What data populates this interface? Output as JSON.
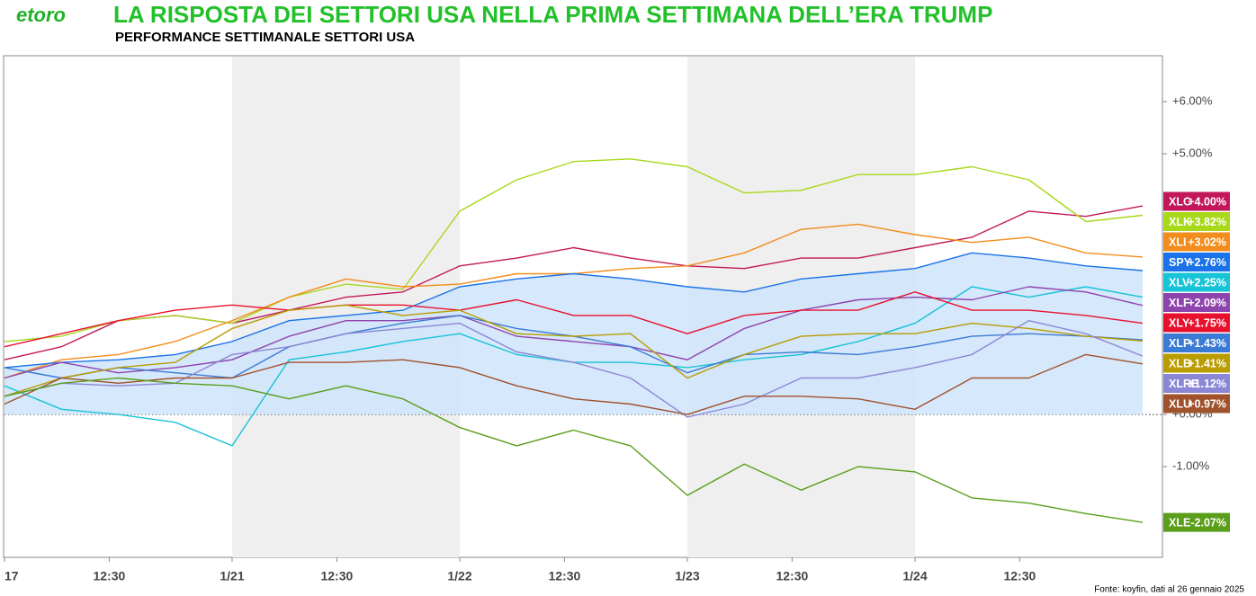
{
  "logo": "etoro",
  "chart_data": {
    "type": "line",
    "title": "LA RISPOSTA DEI SETTORI USA NELLA PRIMA SETTIMANA DELL’ERA TRUMP",
    "subtitle": "PERFORMANCE SETTIMANALE SETTORI USA",
    "source": "Fonte: koyfin, dati al 26 gennaio 2025",
    "x": [
      0,
      0.25,
      0.5,
      0.75,
      1,
      1.25,
      1.5,
      1.75,
      2,
      2.25,
      2.5,
      2.75,
      3,
      3.25,
      3.5,
      3.75,
      4,
      4.25,
      4.5,
      4.75,
      5
    ],
    "xlim": [
      0,
      5
    ],
    "xticks": [
      {
        "value": 0,
        "label": "17"
      },
      {
        "value": 0.46,
        "label": "12:30"
      },
      {
        "value": 1,
        "label": "1/21"
      },
      {
        "value": 1.46,
        "label": "12:30"
      },
      {
        "value": 2,
        "label": "1/22"
      },
      {
        "value": 2.46,
        "label": "12:30"
      },
      {
        "value": 3,
        "label": "1/23"
      },
      {
        "value": 3.46,
        "label": "12:30"
      },
      {
        "value": 4,
        "label": "1/24"
      },
      {
        "value": 4.46,
        "label": "12:30"
      }
    ],
    "ylim": [
      -2.74,
      6.88
    ],
    "yticks": [
      {
        "value": -1,
        "label": "-1.00%"
      },
      {
        "value": 0,
        "label": "+0.00%"
      },
      {
        "value": 5,
        "label": "+5.00%"
      },
      {
        "value": 6,
        "label": "+6.00%"
      }
    ],
    "shaded_days": [
      1,
      3
    ],
    "series": [
      {
        "name": "XLC",
        "color": "#c2185b",
        "values": [
          1.05,
          1.3,
          1.8,
          1.9,
          1.75,
          2.0,
          2.25,
          2.35,
          2.85,
          3.0,
          3.2,
          3.0,
          2.85,
          2.8,
          3.0,
          3.0,
          3.2,
          3.4,
          3.9,
          3.8,
          4.0
        ],
        "value_labels": [
          null,
          null,
          null,
          null,
          null,
          null,
          null,
          null,
          null,
          null,
          null,
          null,
          null,
          null,
          null,
          null,
          null,
          null,
          null,
          null,
          "+4.00%"
        ]
      },
      {
        "name": "XLK",
        "color": "#a8d81a",
        "values": [
          1.4,
          1.5,
          1.8,
          1.9,
          1.75,
          2.25,
          2.5,
          2.4,
          3.9,
          4.5,
          4.85,
          4.9,
          4.75,
          4.25,
          4.3,
          4.6,
          4.6,
          4.75,
          4.5,
          3.7,
          3.82
        ],
        "value_labels": [
          null,
          null,
          null,
          null,
          null,
          null,
          null,
          null,
          null,
          null,
          null,
          null,
          null,
          null,
          null,
          null,
          null,
          null,
          null,
          null,
          "+3.82%"
        ]
      },
      {
        "name": "XLI",
        "color": "#f28c1c",
        "values": [
          0.7,
          1.05,
          1.15,
          1.4,
          1.8,
          2.25,
          2.6,
          2.45,
          2.5,
          2.7,
          2.7,
          2.8,
          2.85,
          3.1,
          3.55,
          3.65,
          3.45,
          3.3,
          3.4,
          3.1,
          3.02
        ],
        "value_labels": [
          null,
          null,
          null,
          null,
          null,
          null,
          null,
          null,
          null,
          null,
          null,
          null,
          null,
          null,
          null,
          null,
          null,
          null,
          null,
          null,
          "+3.02%"
        ]
      },
      {
        "name": "SPY",
        "color": "#1a73e8",
        "fill": "#cfe4fa",
        "values": [
          0.9,
          1.0,
          1.05,
          1.15,
          1.4,
          1.8,
          1.9,
          2.0,
          2.45,
          2.6,
          2.7,
          2.6,
          2.45,
          2.35,
          2.6,
          2.7,
          2.8,
          3.1,
          3.0,
          2.85,
          2.76
        ],
        "value_labels": [
          null,
          null,
          null,
          null,
          null,
          null,
          null,
          null,
          null,
          null,
          null,
          null,
          null,
          null,
          null,
          null,
          null,
          null,
          null,
          null,
          "+2.76%"
        ]
      },
      {
        "name": "XLV",
        "color": "#17c3d6",
        "values": [
          0.55,
          0.1,
          0.0,
          -0.15,
          -0.6,
          1.05,
          1.2,
          1.4,
          1.55,
          1.15,
          1.0,
          1.0,
          0.9,
          1.05,
          1.15,
          1.4,
          1.75,
          2.45,
          2.25,
          2.45,
          2.25
        ],
        "value_labels": [
          null,
          null,
          null,
          null,
          null,
          null,
          null,
          null,
          null,
          null,
          null,
          null,
          null,
          null,
          null,
          null,
          null,
          null,
          null,
          null,
          "+2.25%"
        ]
      },
      {
        "name": "XLF",
        "color": "#8e44ad",
        "values": [
          0.7,
          1.0,
          0.8,
          0.9,
          1.05,
          1.5,
          1.8,
          1.8,
          1.9,
          1.5,
          1.4,
          1.3,
          1.05,
          1.65,
          2.0,
          2.2,
          2.25,
          2.2,
          2.45,
          2.35,
          2.09
        ],
        "value_labels": [
          null,
          null,
          null,
          null,
          null,
          null,
          null,
          null,
          null,
          null,
          null,
          null,
          null,
          null,
          null,
          null,
          null,
          null,
          null,
          null,
          "+2.09%"
        ]
      },
      {
        "name": "XLY",
        "color": "#e8112d",
        "values": [
          1.3,
          1.55,
          1.8,
          2.0,
          2.1,
          2.0,
          2.1,
          2.1,
          2.0,
          2.2,
          1.9,
          1.9,
          1.55,
          1.9,
          2.0,
          2.0,
          2.35,
          2.0,
          2.0,
          1.9,
          1.75
        ],
        "value_labels": [
          null,
          null,
          null,
          null,
          null,
          null,
          null,
          null,
          null,
          null,
          null,
          null,
          null,
          null,
          null,
          null,
          null,
          null,
          null,
          null,
          "+1.75%"
        ]
      },
      {
        "name": "XLP",
        "color": "#3a7bd5",
        "values": [
          0.9,
          0.7,
          0.9,
          0.8,
          0.7,
          1.3,
          1.55,
          1.75,
          1.9,
          1.65,
          1.5,
          1.3,
          0.8,
          1.15,
          1.2,
          1.15,
          1.3,
          1.5,
          1.55,
          1.5,
          1.43
        ],
        "value_labels": [
          null,
          null,
          null,
          null,
          null,
          null,
          null,
          null,
          null,
          null,
          null,
          null,
          null,
          null,
          null,
          null,
          null,
          null,
          null,
          null,
          "+1.43%"
        ]
      },
      {
        "name": "XLB",
        "color": "#b89c00",
        "values": [
          0.35,
          0.7,
          0.9,
          1.0,
          1.65,
          2.0,
          2.1,
          1.9,
          2.0,
          1.55,
          1.5,
          1.55,
          0.7,
          1.15,
          1.5,
          1.55,
          1.55,
          1.75,
          1.65,
          1.5,
          1.41
        ],
        "value_labels": [
          null,
          null,
          null,
          null,
          null,
          null,
          null,
          null,
          null,
          null,
          null,
          null,
          null,
          null,
          null,
          null,
          null,
          null,
          null,
          null,
          "+1.41%"
        ]
      },
      {
        "name": "XLRE",
        "color": "#8c86d6",
        "values": [
          0.35,
          0.6,
          0.55,
          0.6,
          1.15,
          1.3,
          1.55,
          1.65,
          1.75,
          1.2,
          1.0,
          0.7,
          -0.05,
          0.2,
          0.7,
          0.7,
          0.9,
          1.15,
          1.8,
          1.55,
          1.12
        ],
        "value_labels": [
          null,
          null,
          null,
          null,
          null,
          null,
          null,
          null,
          null,
          null,
          null,
          null,
          null,
          null,
          null,
          null,
          null,
          null,
          null,
          null,
          "+1.12%"
        ]
      },
      {
        "name": "XLU",
        "color": "#a0522d",
        "values": [
          0.2,
          0.7,
          0.6,
          0.7,
          0.7,
          1.0,
          1.0,
          1.05,
          0.9,
          0.55,
          0.3,
          0.2,
          0.0,
          0.35,
          0.35,
          0.3,
          0.1,
          0.7,
          0.7,
          1.15,
          0.97
        ],
        "value_labels": [
          null,
          null,
          null,
          null,
          null,
          null,
          null,
          null,
          null,
          null,
          null,
          null,
          null,
          null,
          null,
          null,
          null,
          null,
          null,
          null,
          "+0.97%"
        ]
      },
      {
        "name": "XLE",
        "color": "#5a9e1a",
        "values": [
          0.35,
          0.6,
          0.7,
          0.6,
          0.55,
          0.3,
          0.55,
          0.3,
          -0.25,
          -0.6,
          -0.3,
          -0.6,
          -1.55,
          -0.95,
          -1.45,
          -1.0,
          -1.1,
          -1.6,
          -1.7,
          -1.9,
          -2.07
        ],
        "value_labels": [
          null,
          null,
          null,
          null,
          null,
          null,
          null,
          null,
          null,
          null,
          null,
          null,
          null,
          null,
          null,
          null,
          null,
          null,
          null,
          null,
          "-2.07%"
        ]
      }
    ]
  }
}
